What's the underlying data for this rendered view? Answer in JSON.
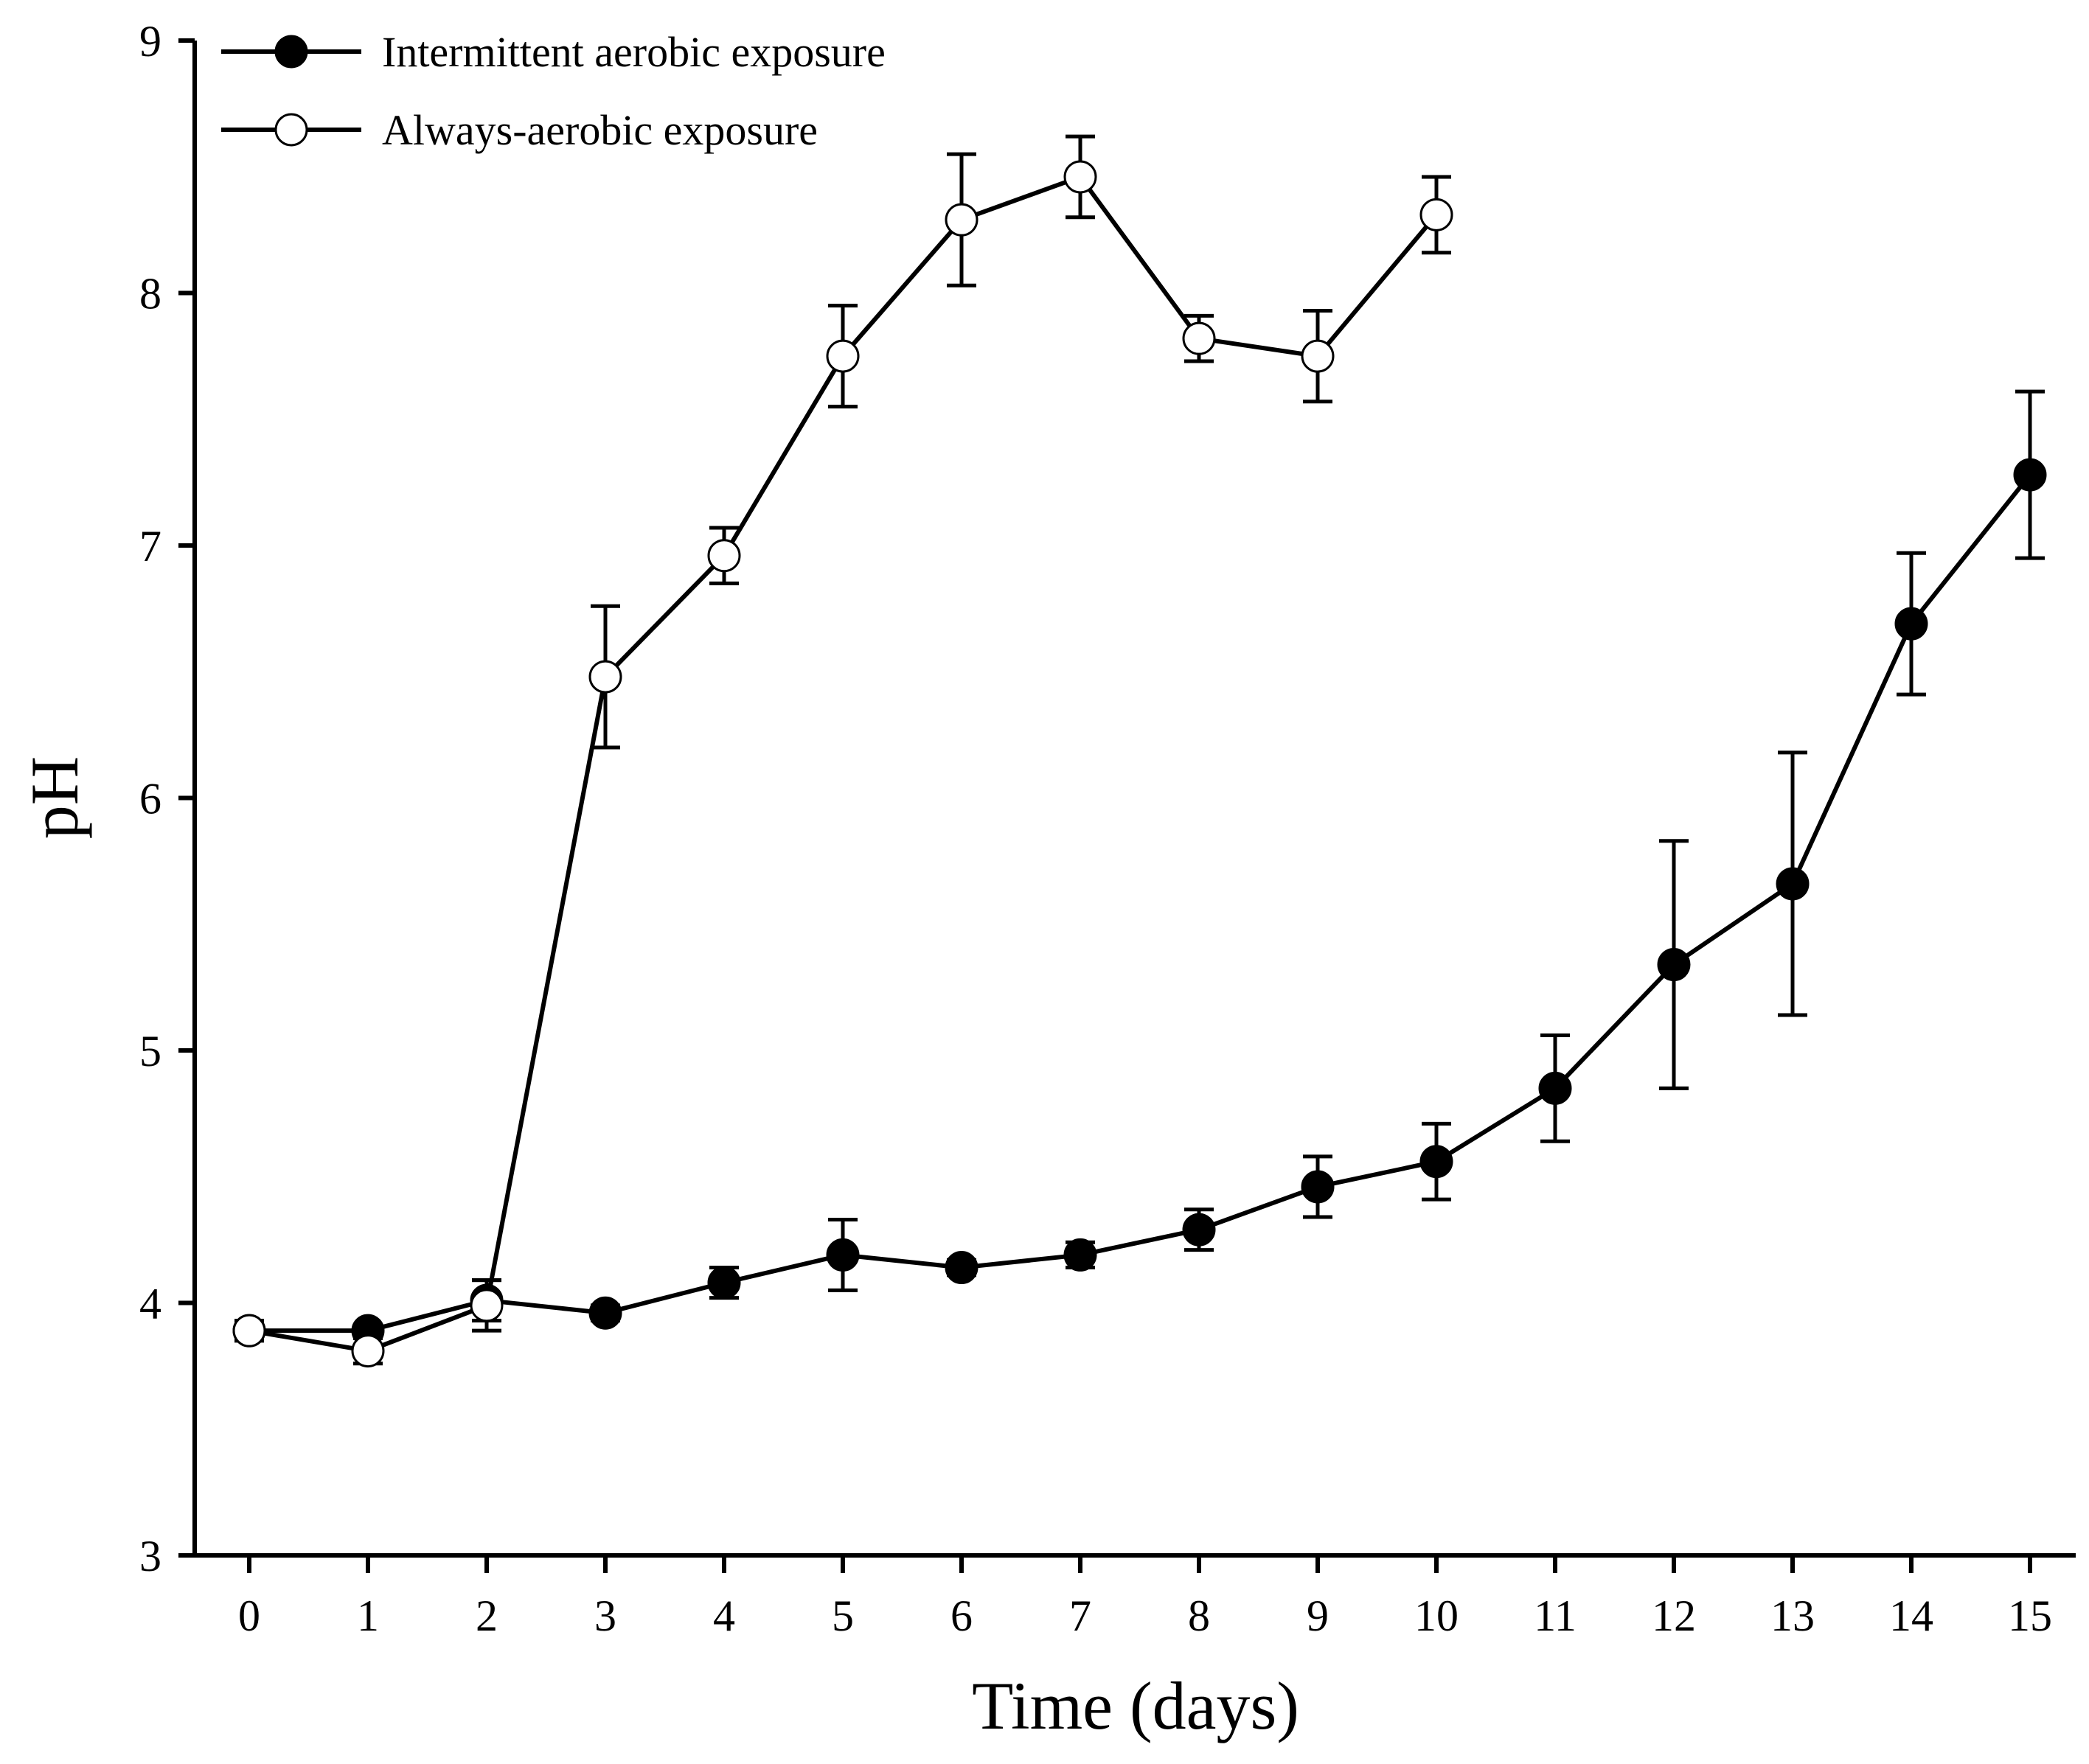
{
  "chart_data": {
    "type": "line",
    "title": "",
    "xlabel": "Time (days)",
    "ylabel": "pH",
    "xlim": [
      -0.5,
      15.5
    ],
    "ylim": [
      3,
      9
    ],
    "xticks": [
      0,
      1,
      2,
      3,
      4,
      5,
      6,
      7,
      8,
      9,
      10,
      11,
      12,
      13,
      14,
      15
    ],
    "yticks": [
      3,
      4,
      5,
      6,
      7,
      8,
      9
    ],
    "grid": false,
    "legend_position": "top-left",
    "series": [
      {
        "name": "Intermittent aerobic exposure",
        "marker": "filled-circle",
        "color": "#000000",
        "x": [
          0,
          1,
          2,
          3,
          4,
          5,
          6,
          7,
          8,
          9,
          10,
          11,
          12,
          13,
          14,
          15
        ],
        "y": [
          3.89,
          3.89,
          4.01,
          3.96,
          4.08,
          4.19,
          4.14,
          4.19,
          4.29,
          4.46,
          4.56,
          4.85,
          5.34,
          5.66,
          6.69,
          7.28
        ],
        "error": [
          0.02,
          0.02,
          0.08,
          0.03,
          0.06,
          0.14,
          0.03,
          0.05,
          0.08,
          0.12,
          0.15,
          0.21,
          0.49,
          0.52,
          0.28,
          0.33
        ]
      },
      {
        "name": "Always-aerobic exposure",
        "marker": "open-circle",
        "color": "#000000",
        "x": [
          0,
          1,
          2,
          3,
          4,
          5,
          6,
          7,
          8,
          9,
          10
        ],
        "y": [
          3.89,
          3.81,
          3.99,
          6.48,
          6.96,
          7.75,
          8.29,
          8.46,
          7.82,
          7.75,
          8.31
        ],
        "error": [
          0.04,
          0.05,
          0.1,
          0.28,
          0.11,
          0.2,
          0.26,
          0.16,
          0.09,
          0.18,
          0.15
        ]
      }
    ]
  }
}
